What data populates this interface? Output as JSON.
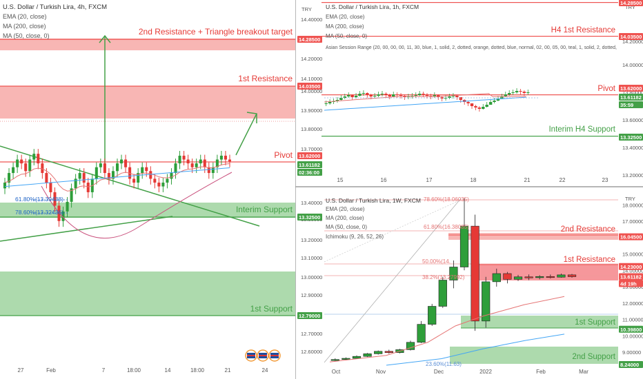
{
  "colors": {
    "resistance": "#ef5350",
    "resistance_fill": "#f7a9a7",
    "support": "#43a047",
    "support_fill": "#9fd49f",
    "candle_up": "#2e9e3a",
    "candle_down": "#e53935",
    "ema": "#e57373",
    "ma200": "#42a5f5",
    "text": "#333333"
  },
  "left_panel": {
    "title": "U.S. Dollar / Turkish Lira, 4h, FXCM",
    "indicators": [
      "EMA (20, close)",
      "MA (200, close)",
      "MA (50, close, 0)"
    ],
    "currency": "TRY",
    "price_ticks": [
      "14.40000",
      "14.30000",
      "14.20000",
      "14.10000",
      "14.00000",
      "13.90000",
      "13.80000",
      "13.70000",
      "13.40000",
      "13.30000",
      "13.20000",
      "13.10000",
      "13.00000",
      "12.90000",
      "12.80000",
      "12.70000",
      "12.60000"
    ],
    "price_badges": [
      {
        "text": "14.28500",
        "kind": "res"
      },
      {
        "text": "14.03500",
        "kind": "res"
      },
      {
        "text": "13.62000",
        "kind": "res"
      },
      {
        "text": "13.61182",
        "kind": "sup"
      },
      {
        "text": "02:36:00",
        "kind": "sup"
      },
      {
        "text": "13.32500",
        "kind": "sup"
      },
      {
        "text": "12.79000",
        "kind": "sup"
      }
    ],
    "x_ticks": [
      "27",
      "Feb",
      "7",
      "18:00",
      "14",
      "18:00",
      "21",
      "24"
    ],
    "labels": {
      "target": "2nd Resistance + Triangle breakout target",
      "res1": "1st Resistance",
      "pivot": "Pivot",
      "interim": "Interim Support",
      "sup1": "1st Support"
    },
    "fib": [
      "61.80%(13.39438)",
      "78.60%(13.32436)"
    ]
  },
  "top_right_panel": {
    "title": "U.S. Dollar / Turkish Lira, 1h, FXCM",
    "indicators": [
      "EMA (20, close)",
      "MA (200, close)",
      "MA (50, close, 0)",
      "Asian Session Range (20, 00, 00, 00, 11, 30, blue, 1, solid, 2, dotted, orange, dotted, blue, normal, 02, 00, 05, 00, teal, 1, solid, 2, dotted,"
    ],
    "currency": "TRY",
    "price_ticks": [
      "14.40000",
      "14.20000",
      "14.00000",
      "13.80000",
      "13.60000",
      "13.40000",
      "13.20000"
    ],
    "price_badges": [
      {
        "text": "14.28500",
        "kind": "res"
      },
      {
        "text": "14.03500",
        "kind": "res"
      },
      {
        "text": "13.62000",
        "kind": "res"
      },
      {
        "text": "13.61182",
        "kind": "sup"
      },
      {
        "text": "35:59",
        "kind": "sup"
      },
      {
        "text": "13.32500",
        "kind": "sup"
      }
    ],
    "x_ticks": [
      "15",
      "16",
      "17",
      "18",
      "21",
      "22",
      "23"
    ],
    "labels": {
      "res": "H4 1st Resistance",
      "pivot": "Pivot",
      "interim": "Interim H4 Support"
    }
  },
  "bottom_right_panel": {
    "title": "U.S. Dollar / Turkish Lira, 1W, FXCM",
    "indicators": [
      "EMA (20, close)",
      "MA (200, close)",
      "MA (50, close, 0)",
      "Ichimoku (9, 26, 52, 26)"
    ],
    "currency": "TRY",
    "price_ticks": [
      "18.00000",
      "17.00000",
      "16.00000",
      "15.00000",
      "14.00000",
      "13.00000",
      "12.00000",
      "11.00000",
      "10.00000",
      "9.00000"
    ],
    "price_badges": [
      {
        "text": "16.04500",
        "kind": "res"
      },
      {
        "text": "14.23000",
        "kind": "res"
      },
      {
        "text": "13.61182",
        "kind": "res"
      },
      {
        "text": "4d 19h",
        "kind": "res"
      },
      {
        "text": "10.39800",
        "kind": "sup"
      },
      {
        "text": "8.24000",
        "kind": "sup"
      }
    ],
    "x_ticks": [
      "Oct",
      "Nov",
      "Dec",
      "2022",
      "Feb",
      "Mar"
    ],
    "labels": {
      "res2": "2nd Resistance",
      "res1": "1st Resistance",
      "sup1": "1st Support",
      "sup2": "2nd Support"
    },
    "fib": [
      "78.60%(18.06035)",
      "61.80%(16.38085)",
      "50.00%(14.",
      "38.2%(13.27992)",
      "23.60%(11.63)"
    ]
  },
  "chart_data": [
    {
      "type": "candlestick",
      "title": "U.S. Dollar / Turkish Lira, 4h, FXCM",
      "ylim": [
        12.55,
        14.45
      ],
      "last_price": 13.61182,
      "levels": [
        {
          "name": "2nd Resistance + Triangle breakout target",
          "value": 14.285
        },
        {
          "name": "1st Resistance",
          "range": [
            13.87,
            14.035
          ]
        },
        {
          "name": "Pivot",
          "value": 13.62
        },
        {
          "name": "Interim Support",
          "range": [
            13.325,
            13.41
          ]
        },
        {
          "name": "1st Support",
          "range": [
            12.79,
            13.08
          ]
        }
      ],
      "closes": [
        13.5,
        13.55,
        13.58,
        13.62,
        13.6,
        13.56,
        13.62,
        13.65,
        13.6,
        13.55,
        13.5,
        13.45,
        13.38,
        13.3,
        13.35,
        13.4,
        13.47,
        13.52,
        13.55,
        13.5,
        13.45,
        13.52,
        13.58,
        13.6,
        13.55,
        13.52,
        13.56,
        13.6,
        13.62,
        13.58,
        13.52,
        13.5,
        13.55,
        13.58,
        13.56,
        13.52,
        13.5,
        13.48,
        13.5,
        13.52,
        13.55,
        13.6,
        13.64,
        13.62,
        13.6,
        13.58,
        13.6,
        13.62,
        13.58,
        13.55,
        13.58,
        13.62,
        13.64,
        13.62,
        13.61
      ]
    },
    {
      "type": "candlestick",
      "title": "U.S. Dollar / Turkish Lira, 1h, FXCM",
      "ylim": [
        13.08,
        14.5
      ],
      "last_price": 13.61182,
      "levels": [
        {
          "name": "H4 1st Resistance",
          "value": 14.035
        },
        {
          "name": "Pivot",
          "value": 13.62
        },
        {
          "name": "Interim H4 Support",
          "value": 13.325
        }
      ]
    },
    {
      "type": "candlestick",
      "title": "U.S. Dollar / Turkish Lira, 1W, FXCM",
      "ylim": [
        8.2,
        18.6
      ],
      "last_price": 13.61182,
      "levels": [
        {
          "name": "2nd Resistance",
          "range": [
            15.7,
            16.045
          ]
        },
        {
          "name": "1st Resistance",
          "range": [
            13.25,
            14.23
          ]
        },
        {
          "name": "1st Support",
          "range": [
            10.398,
            10.95
          ]
        },
        {
          "name": "2nd Support",
          "range": [
            8.24,
            9.05
          ]
        }
      ],
      "candles": [
        {
          "o": 8.52,
          "h": 8.62,
          "l": 8.45,
          "c": 8.55
        },
        {
          "o": 8.55,
          "h": 8.68,
          "l": 8.5,
          "c": 8.62
        },
        {
          "o": 8.62,
          "h": 8.8,
          "l": 8.58,
          "c": 8.74
        },
        {
          "o": 8.74,
          "h": 8.95,
          "l": 8.7,
          "c": 8.9
        },
        {
          "o": 8.9,
          "h": 9.1,
          "l": 8.85,
          "c": 9.05
        },
        {
          "o": 9.05,
          "h": 9.15,
          "l": 8.9,
          "c": 8.97
        },
        {
          "o": 8.97,
          "h": 9.2,
          "l": 8.92,
          "c": 9.15
        },
        {
          "o": 9.15,
          "h": 9.7,
          "l": 9.1,
          "c": 9.6
        },
        {
          "o": 9.6,
          "h": 10.9,
          "l": 9.55,
          "c": 10.7
        },
        {
          "o": 10.7,
          "h": 11.95,
          "l": 10.6,
          "c": 11.8
        },
        {
          "o": 11.8,
          "h": 13.6,
          "l": 11.7,
          "c": 13.4
        },
        {
          "o": 13.4,
          "h": 14.6,
          "l": 12.9,
          "c": 14.2
        },
        {
          "o": 14.2,
          "h": 18.4,
          "l": 14.0,
          "c": 16.7
        },
        {
          "o": 16.7,
          "h": 17.4,
          "l": 10.3,
          "c": 10.9
        },
        {
          "o": 10.9,
          "h": 13.6,
          "l": 10.5,
          "c": 13.3
        },
        {
          "o": 13.3,
          "h": 14.1,
          "l": 13.0,
          "c": 13.8
        },
        {
          "o": 13.8,
          "h": 13.9,
          "l": 13.2,
          "c": 13.45
        },
        {
          "o": 13.45,
          "h": 13.72,
          "l": 13.35,
          "c": 13.6
        },
        {
          "o": 13.6,
          "h": 13.75,
          "l": 13.4,
          "c": 13.55
        },
        {
          "o": 13.55,
          "h": 13.7,
          "l": 13.45,
          "c": 13.62
        },
        {
          "o": 13.62,
          "h": 13.74,
          "l": 13.5,
          "c": 13.58
        },
        {
          "o": 13.58,
          "h": 13.8,
          "l": 13.55,
          "c": 13.72
        },
        {
          "o": 13.72,
          "h": 13.78,
          "l": 13.55,
          "c": 13.61
        }
      ]
    }
  ]
}
